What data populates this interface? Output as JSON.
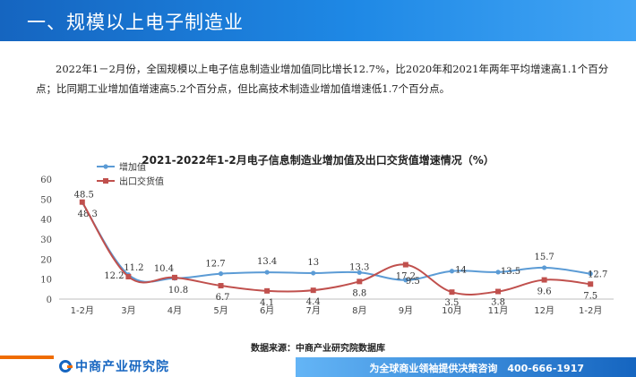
{
  "header": {
    "title": "一、规模以上电子制造业"
  },
  "intro": {
    "text": "2022年1－2月份，全国规模以上电子信息制造业增加值同比增长12.7%，比2020年和2021年两年平均增速高1.1个百分点；比同期工业增加值增速高5.2个百分点，但比高技术制造业增加值增速低1.7个百分点。"
  },
  "chart_data": {
    "type": "line",
    "title": "2021-2022年1-2月电子信息制造业增加值及出口交货值增速情况（%）",
    "categories": [
      "1-2月",
      "3月",
      "4月",
      "5月",
      "6月",
      "7月",
      "8月",
      "9月",
      "10月",
      "11月",
      "12月",
      "1-2月"
    ],
    "series": [
      {
        "name": "增加值",
        "color": "#5b9bd5",
        "marker": "circle",
        "values": [
          48.3,
          12.2,
          10.4,
          12.7,
          13.4,
          13,
          13.3,
          9.5,
          14,
          13.5,
          15.7,
          12.7
        ]
      },
      {
        "name": "出口交货值",
        "color": "#c0504d",
        "marker": "square",
        "values": [
          48.5,
          11.2,
          10.8,
          6.7,
          4.1,
          4.4,
          8.8,
          17.2,
          3.5,
          3.8,
          9.6,
          7.5
        ]
      }
    ],
    "ylim": [
      0,
      60
    ],
    "yticks": [
      0,
      10,
      20,
      30,
      40,
      50,
      60
    ],
    "grid": false,
    "legend": "top-left"
  },
  "source": {
    "text": "数据来源：中商产业研究院数据库"
  },
  "footer": {
    "logo_text": "中商产业研究院",
    "slogan": "为全球商业领袖提供决策咨询　400-666-1917"
  },
  "colors": {
    "header": "#1e88e5",
    "accent": "#ef6c00"
  }
}
